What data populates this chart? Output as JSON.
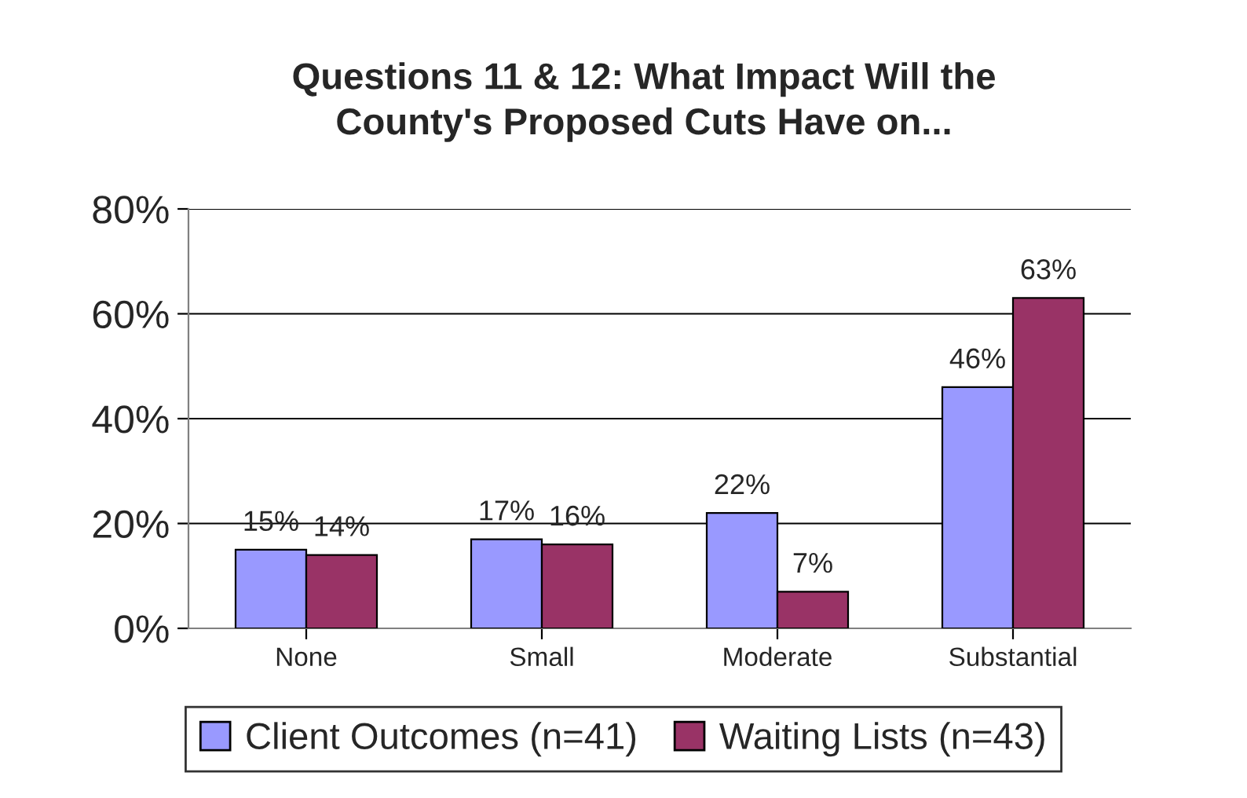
{
  "chart_data": {
    "type": "bar",
    "title": "Questions 11 & 12: What Impact Will the\nCounty's Proposed Cuts Have on...",
    "categories": [
      "None",
      "Small",
      "Moderate",
      "Substantial"
    ],
    "series": [
      {
        "name": "Client Outcomes (n=41)",
        "color": "#9999ff",
        "values": [
          15,
          17,
          22,
          46
        ],
        "value_labels": [
          "15%",
          "17%",
          "22%",
          "46%"
        ]
      },
      {
        "name": "Waiting Lists (n=43)",
        "color": "#993366",
        "values": [
          14,
          16,
          7,
          63
        ],
        "value_labels": [
          "14%",
          "16%",
          "7%",
          "63%"
        ]
      }
    ],
    "ylim": [
      0,
      80
    ],
    "yticks": [
      {
        "value": 0,
        "label": "0%"
      },
      {
        "value": 20,
        "label": "20%"
      },
      {
        "value": 40,
        "label": "40%"
      },
      {
        "value": 60,
        "label": "60%"
      },
      {
        "value": 80,
        "label": "80%"
      }
    ],
    "grid": "y",
    "legend": "bottom"
  }
}
